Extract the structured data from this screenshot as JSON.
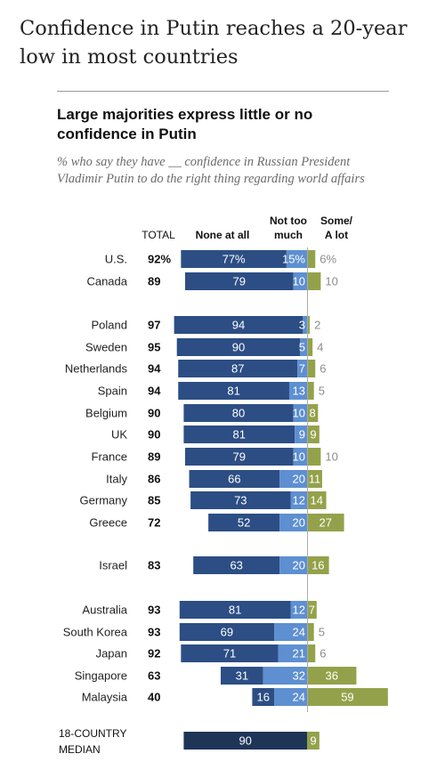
{
  "headline": "Confidence in Putin reaches a 20-year low in most countries",
  "chart_data": {
    "type": "bar",
    "stacked": "diverging",
    "title": "Large majorities express little or no confidence in Putin",
    "subtitle": "% who say they have __ confidence in Russian President Vladimir Putin to do the right thing regarding world affairs",
    "column_headers": {
      "total": "TOTAL",
      "none": "None at all",
      "not_too_much_line1": "Not too",
      "not_too_much_line2": "much",
      "some_line1": "Some/",
      "some_line2": "A lot"
    },
    "series_names": [
      "None at all",
      "Not too much",
      "Some/A lot"
    ],
    "colors": {
      "none": "#2c4e84",
      "not_too_much": "#5d8fd1",
      "some": "#93a24a",
      "median_none": "#1e3558",
      "axis": "#aaaaaa"
    },
    "rows": [
      {
        "country": "U.S.",
        "total": "92%",
        "none": 77,
        "none_label": "77%",
        "not_too_much": 15,
        "ntm_label": "15%",
        "some": 6,
        "some_label": "6%",
        "some_inside": false
      },
      {
        "country": "Canada",
        "total": "89",
        "none": 79,
        "none_label": "79",
        "not_too_much": 10,
        "ntm_label": "10",
        "some": 10,
        "some_label": "10",
        "some_inside": false
      },
      {
        "country": "Poland",
        "total": "97",
        "none": 94,
        "none_label": "94",
        "not_too_much": 3,
        "ntm_label": "3",
        "some": 2,
        "some_label": "2",
        "some_inside": false
      },
      {
        "country": "Sweden",
        "total": "95",
        "none": 90,
        "none_label": "90",
        "not_too_much": 5,
        "ntm_label": "5",
        "some": 4,
        "some_label": "4",
        "some_inside": false
      },
      {
        "country": "Netherlands",
        "total": "94",
        "none": 87,
        "none_label": "87",
        "not_too_much": 7,
        "ntm_label": "7",
        "some": 6,
        "some_label": "6",
        "some_inside": false
      },
      {
        "country": "Spain",
        "total": "94",
        "none": 81,
        "none_label": "81",
        "not_too_much": 13,
        "ntm_label": "13",
        "some": 5,
        "some_label": "5",
        "some_inside": false
      },
      {
        "country": "Belgium",
        "total": "90",
        "none": 80,
        "none_label": "80",
        "not_too_much": 10,
        "ntm_label": "10",
        "some": 8,
        "some_label": "8",
        "some_inside": true
      },
      {
        "country": "UK",
        "total": "90",
        "none": 81,
        "none_label": "81",
        "not_too_much": 9,
        "ntm_label": "9",
        "some": 9,
        "some_label": "9",
        "some_inside": true
      },
      {
        "country": "France",
        "total": "89",
        "none": 79,
        "none_label": "79",
        "not_too_much": 10,
        "ntm_label": "10",
        "some": 10,
        "some_label": "10",
        "some_inside": false
      },
      {
        "country": "Italy",
        "total": "86",
        "none": 66,
        "none_label": "66",
        "not_too_much": 20,
        "ntm_label": "20",
        "some": 11,
        "some_label": "11",
        "some_inside": true
      },
      {
        "country": "Germany",
        "total": "85",
        "none": 73,
        "none_label": "73",
        "not_too_much": 12,
        "ntm_label": "12",
        "some": 14,
        "some_label": "14",
        "some_inside": true
      },
      {
        "country": "Greece",
        "total": "72",
        "none": 52,
        "none_label": "52",
        "not_too_much": 20,
        "ntm_label": "20",
        "some": 27,
        "some_label": "27",
        "some_inside": true
      },
      {
        "country": "Israel",
        "total": "83",
        "none": 63,
        "none_label": "63",
        "not_too_much": 20,
        "ntm_label": "20",
        "some": 16,
        "some_label": "16",
        "some_inside": true
      },
      {
        "country": "Australia",
        "total": "93",
        "none": 81,
        "none_label": "81",
        "not_too_much": 12,
        "ntm_label": "12",
        "some": 7,
        "some_label": "7",
        "some_inside": true
      },
      {
        "country": "South Korea",
        "total": "93",
        "none": 69,
        "none_label": "69",
        "not_too_much": 24,
        "ntm_label": "24",
        "some": 5,
        "some_label": "5",
        "some_inside": false
      },
      {
        "country": "Japan",
        "total": "92",
        "none": 71,
        "none_label": "71",
        "not_too_much": 21,
        "ntm_label": "21",
        "some": 6,
        "some_label": "6",
        "some_inside": false
      },
      {
        "country": "Singapore",
        "total": "63",
        "none": 31,
        "none_label": "31",
        "not_too_much": 32,
        "ntm_label": "32",
        "some": 36,
        "some_label": "36",
        "some_inside": true
      },
      {
        "country": "Malaysia",
        "total": "40",
        "none": 16,
        "none_label": "16",
        "not_too_much": 24,
        "ntm_label": "24",
        "some": 59,
        "some_label": "59",
        "some_inside": true
      }
    ],
    "median": {
      "label_line1": "18-COUNTRY",
      "label_line2": "MEDIAN",
      "none": 90,
      "none_label": "90",
      "some": 9,
      "some_label": "9"
    }
  }
}
